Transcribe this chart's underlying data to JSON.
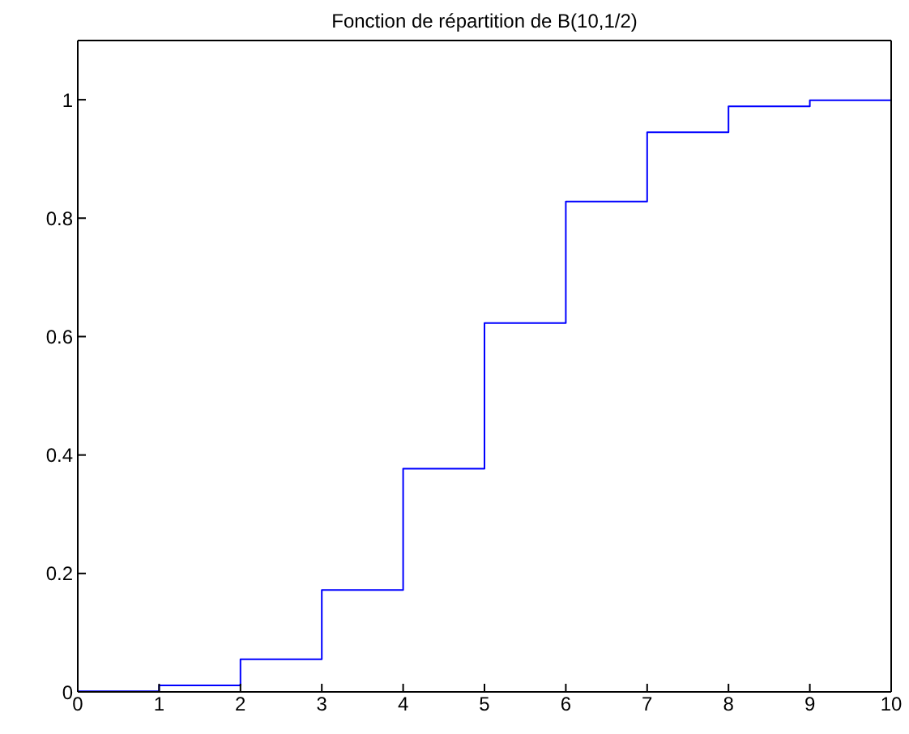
{
  "chart_data": {
    "type": "step",
    "title": "Fonction de répartition de B(10,1/2)",
    "x": [
      0,
      1,
      2,
      3,
      4,
      5,
      6,
      7,
      8,
      9,
      10
    ],
    "series": [
      {
        "color": "#0000ff",
        "values": [
          0.001,
          0.011,
          0.055,
          0.172,
          0.377,
          0.623,
          0.828,
          0.945,
          0.989,
          0.999,
          1
        ]
      }
    ],
    "xlim": [
      0,
      10
    ],
    "xticks": [
      0,
      1,
      2,
      3,
      4,
      5,
      6,
      7,
      8,
      9,
      10
    ],
    "ylim": [
      0,
      1.1
    ],
    "yticks": [
      0,
      0.2,
      0.4,
      0.6,
      0.8,
      1
    ]
  }
}
